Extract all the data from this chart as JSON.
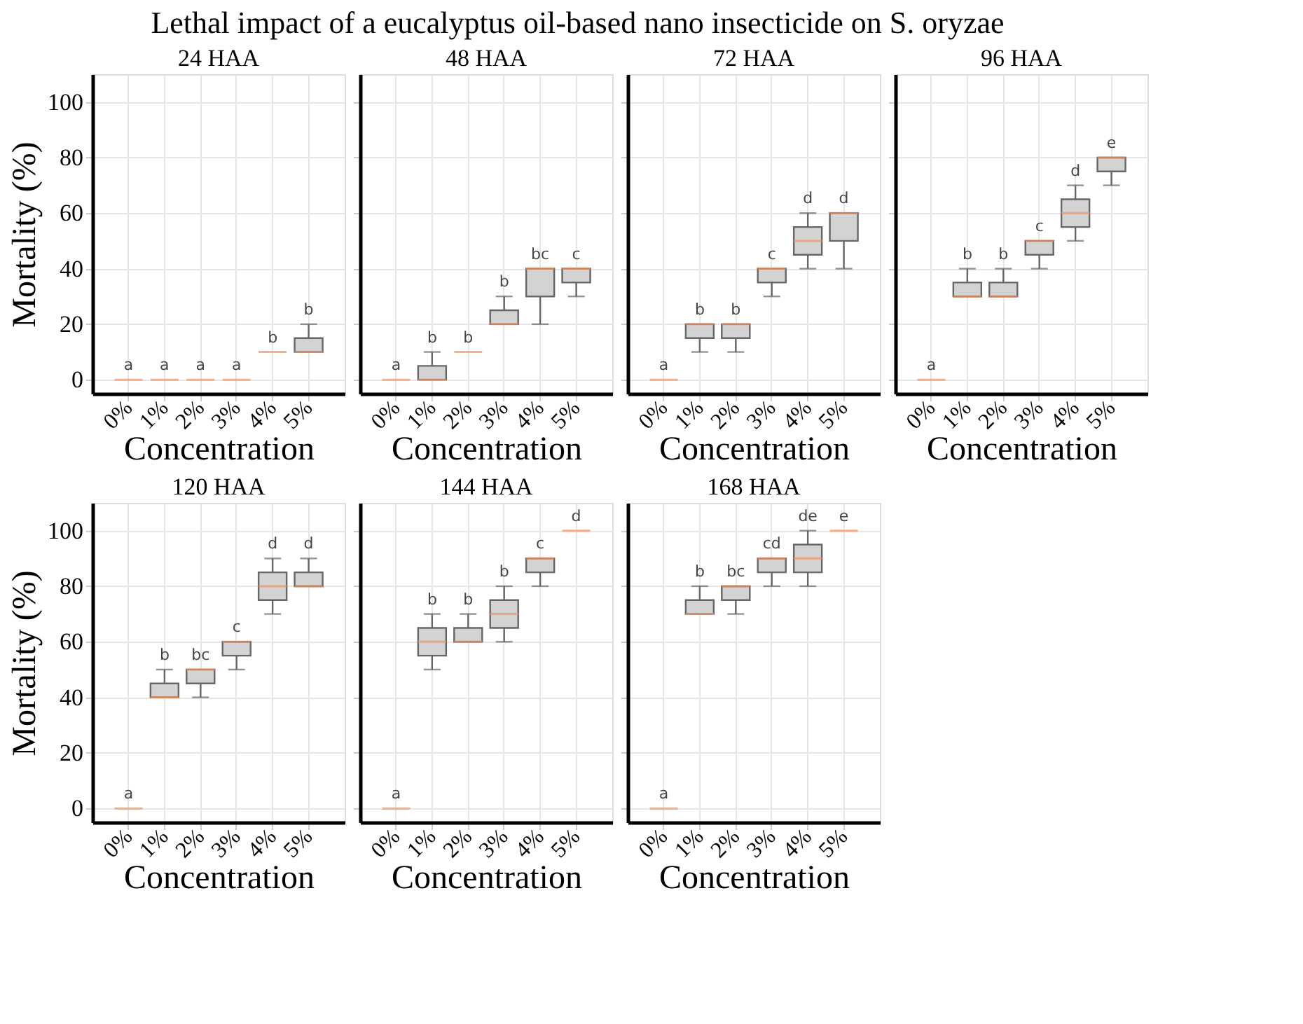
{
  "chart_data": [
    {
      "type": "box",
      "title": "Lethal impact of a eucalyptus oil-based nano insecticide on S. oryzae",
      "subtitle": "24 HAA",
      "xlabel": "Concentration",
      "ylabel": "Mortality (%)",
      "categories": [
        "0%",
        "1%",
        "2%",
        "3%",
        "4%",
        "5%"
      ],
      "colors": [
        "#f4915e",
        "#f4915e",
        "#f4915e",
        "#f4915e",
        "#f4915e",
        "#d3d3d3"
      ],
      "ylim": [
        -5,
        110
      ],
      "yticks": [
        0,
        20,
        40,
        60,
        80,
        100
      ],
      "grid": true,
      "boxes": [
        {
          "low": 0,
          "q1": 0,
          "median": 0,
          "q3": 0,
          "high": 0
        },
        {
          "low": 0,
          "q1": 0,
          "median": 0,
          "q3": 0,
          "high": 0
        },
        {
          "low": 0,
          "q1": 0,
          "median": 0,
          "q3": 0,
          "high": 0
        },
        {
          "low": 0,
          "q1": 0,
          "median": 0,
          "q3": 0,
          "high": 0
        },
        {
          "low": 10,
          "q1": 10,
          "median": 10,
          "q3": 10,
          "high": 10
        },
        {
          "low": 10,
          "q1": 10,
          "median": 10,
          "q3": 15,
          "high": 20
        }
      ],
      "annotations": [
        "a",
        "a",
        "a",
        "a",
        "b",
        "b"
      ]
    },
    {
      "type": "box",
      "subtitle": "48 HAA",
      "xlabel": "Concentration",
      "categories": [
        "0%",
        "1%",
        "2%",
        "3%",
        "4%",
        "5%"
      ],
      "colors": [
        "#f4915e",
        "#d3d3d3",
        "#f4915e",
        "#d3d3d3",
        "#d3d3d3",
        "#d3d3d3"
      ],
      "ylim": [
        -5,
        110
      ],
      "yticks": [
        0,
        20,
        40,
        60,
        80,
        100
      ],
      "grid": true,
      "tick_labels": "x",
      "boxes": [
        {
          "low": 0,
          "q1": 0,
          "median": 0,
          "q3": 0,
          "high": 0
        },
        {
          "low": 0,
          "q1": 0,
          "median": 0,
          "q3": 5,
          "high": 10
        },
        {
          "low": 10,
          "q1": 10,
          "median": 10,
          "q3": 10,
          "high": 10
        },
        {
          "low": 20,
          "q1": 20,
          "median": 20,
          "q3": 25,
          "high": 30
        },
        {
          "low": 20,
          "q1": 30,
          "median": 40,
          "q3": 40,
          "high": 40
        },
        {
          "low": 30,
          "q1": 35,
          "median": 40,
          "q3": 40,
          "high": 40
        }
      ],
      "annotations": [
        "a",
        "b",
        "b",
        "b",
        "bc",
        "c"
      ]
    },
    {
      "type": "box",
      "subtitle": "72 HAA",
      "xlabel": "Concentration",
      "categories": [
        "0%",
        "1%",
        "2%",
        "3%",
        "4%",
        "5%"
      ],
      "colors": [
        "#f4915e",
        "#d3d3d3",
        "#d3d3d3",
        "#d3d3d3",
        "#d3d3d3",
        "#d3d3d3"
      ],
      "ylim": [
        -5,
        110
      ],
      "yticks": [
        0,
        20,
        40,
        60,
        80,
        100
      ],
      "grid": true,
      "tick_labels": "x",
      "boxes": [
        {
          "low": 0,
          "q1": 0,
          "median": 0,
          "q3": 0,
          "high": 0
        },
        {
          "low": 10,
          "q1": 15,
          "median": 20,
          "q3": 20,
          "high": 20
        },
        {
          "low": 10,
          "q1": 15,
          "median": 20,
          "q3": 20,
          "high": 20
        },
        {
          "low": 30,
          "q1": 35,
          "median": 40,
          "q3": 40,
          "high": 40
        },
        {
          "low": 40,
          "q1": 45,
          "median": 50,
          "q3": 55,
          "high": 60
        },
        {
          "low": 40,
          "q1": 50,
          "median": 60,
          "q3": 60,
          "high": 60
        }
      ],
      "annotations": [
        "a",
        "b",
        "b",
        "c",
        "d",
        "d"
      ]
    },
    {
      "type": "box",
      "subtitle": "96 HAA",
      "xlabel": "Concentration",
      "categories": [
        "0%",
        "1%",
        "2%",
        "3%",
        "4%",
        "5%"
      ],
      "colors": [
        "#f4915e",
        "#d3d3d3",
        "#d3d3d3",
        "#d3d3d3",
        "#d3d3d3",
        "#d3d3d3"
      ],
      "ylim": [
        -5,
        110
      ],
      "yticks": [
        0,
        20,
        40,
        60,
        80,
        100
      ],
      "grid": true,
      "tick_labels": "x",
      "boxes": [
        {
          "low": 0,
          "q1": 0,
          "median": 0,
          "q3": 0,
          "high": 0
        },
        {
          "low": 30,
          "q1": 30,
          "median": 30,
          "q3": 35,
          "high": 40
        },
        {
          "low": 30,
          "q1": 30,
          "median": 30,
          "q3": 35,
          "high": 40
        },
        {
          "low": 40,
          "q1": 45,
          "median": 50,
          "q3": 50,
          "high": 50
        },
        {
          "low": 50,
          "q1": 55,
          "median": 60,
          "q3": 65,
          "high": 70
        },
        {
          "low": 70,
          "q1": 75,
          "median": 80,
          "q3": 80,
          "high": 80
        }
      ],
      "annotations": [
        "a",
        "b",
        "b",
        "c",
        "d",
        "e"
      ]
    },
    {
      "type": "box",
      "subtitle": "120 HAA",
      "xlabel": "Concentration",
      "ylabel": "Mortality (%)",
      "categories": [
        "0%",
        "1%",
        "2%",
        "3%",
        "4%",
        "5%"
      ],
      "colors": [
        "#f4915e",
        "#d3d3d3",
        "#d3d3d3",
        "#d3d3d3",
        "#d3d3d3",
        "#d3d3d3"
      ],
      "ylim": [
        -5,
        110
      ],
      "yticks": [
        0,
        20,
        40,
        60,
        80,
        100
      ],
      "grid": true,
      "boxes": [
        {
          "low": 0,
          "q1": 0,
          "median": 0,
          "q3": 0,
          "high": 0
        },
        {
          "low": 40,
          "q1": 40,
          "median": 40,
          "q3": 45,
          "high": 50
        },
        {
          "low": 40,
          "q1": 45,
          "median": 50,
          "q3": 50,
          "high": 50
        },
        {
          "low": 50,
          "q1": 55,
          "median": 60,
          "q3": 60,
          "high": 60
        },
        {
          "low": 70,
          "q1": 75,
          "median": 80,
          "q3": 85,
          "high": 90
        },
        {
          "low": 80,
          "q1": 80,
          "median": 80,
          "q3": 85,
          "high": 90
        }
      ],
      "annotations": [
        "a",
        "b",
        "bc",
        "c",
        "d",
        "d"
      ]
    },
    {
      "type": "box",
      "subtitle": "144 HAA",
      "xlabel": "Concentration",
      "categories": [
        "0%",
        "1%",
        "2%",
        "3%",
        "4%",
        "5%"
      ],
      "colors": [
        "#f4915e",
        "#d3d3d3",
        "#d3d3d3",
        "#d3d3d3",
        "#d3d3d3",
        "#f4915e"
      ],
      "ylim": [
        -5,
        110
      ],
      "yticks": [
        0,
        20,
        40,
        60,
        80,
        100
      ],
      "grid": true,
      "tick_labels": "x",
      "boxes": [
        {
          "low": 0,
          "q1": 0,
          "median": 0,
          "q3": 0,
          "high": 0
        },
        {
          "low": 50,
          "q1": 55,
          "median": 60,
          "q3": 65,
          "high": 70
        },
        {
          "low": 60,
          "q1": 60,
          "median": 60,
          "q3": 65,
          "high": 70
        },
        {
          "low": 60,
          "q1": 65,
          "median": 70,
          "q3": 75,
          "high": 80
        },
        {
          "low": 80,
          "q1": 85,
          "median": 90,
          "q3": 90,
          "high": 90
        },
        {
          "low": 100,
          "q1": 100,
          "median": 100,
          "q3": 100,
          "high": 100
        }
      ],
      "annotations": [
        "a",
        "b",
        "b",
        "b",
        "c",
        "d"
      ]
    },
    {
      "type": "box",
      "subtitle": "168 HAA",
      "xlabel": "Concentration",
      "categories": [
        "0%",
        "1%",
        "2%",
        "3%",
        "4%",
        "5%"
      ],
      "colors": [
        "#f4915e",
        "#d3d3d3",
        "#d3d3d3",
        "#d3d3d3",
        "#d3d3d3",
        "#f4915e"
      ],
      "ylim": [
        -5,
        110
      ],
      "yticks": [
        0,
        20,
        40,
        60,
        80,
        100
      ],
      "grid": true,
      "tick_labels": "x",
      "boxes": [
        {
          "low": 0,
          "q1": 0,
          "median": 0,
          "q3": 0,
          "high": 0
        },
        {
          "low": 70,
          "q1": 70,
          "median": 70,
          "q3": 75,
          "high": 80
        },
        {
          "low": 70,
          "q1": 75,
          "median": 80,
          "q3": 80,
          "high": 80
        },
        {
          "low": 80,
          "q1": 85,
          "median": 90,
          "q3": 90,
          "high": 90
        },
        {
          "low": 80,
          "q1": 85,
          "median": 90,
          "q3": 95,
          "high": 100
        },
        {
          "low": 100,
          "q1": 100,
          "median": 100,
          "q3": 100,
          "high": 100
        }
      ],
      "annotations": [
        "a",
        "b",
        "bc",
        "cd",
        "de",
        "e"
      ]
    }
  ]
}
